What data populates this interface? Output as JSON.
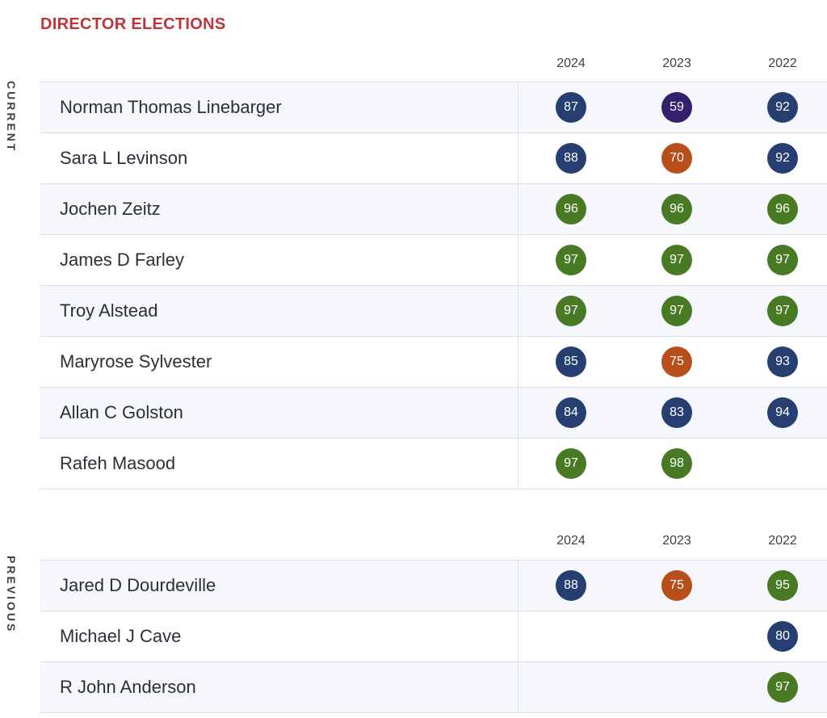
{
  "page": {
    "title": "DIRECTOR ELECTIONS",
    "title_color": "#c0333a"
  },
  "score_colors": {
    "blue": "#263f70",
    "purple": "#34206d",
    "orange": "#b84f1b",
    "green": "#487a23"
  },
  "sections": [
    {
      "label": "CURRENT",
      "years": [
        "2024",
        "2023",
        "2022"
      ],
      "rows": [
        {
          "name": "Norman Thomas Linebarger",
          "scores": [
            {
              "value": "87",
              "color": "blue"
            },
            {
              "value": "59",
              "color": "purple"
            },
            {
              "value": "92",
              "color": "blue"
            }
          ]
        },
        {
          "name": "Sara L Levinson",
          "scores": [
            {
              "value": "88",
              "color": "blue"
            },
            {
              "value": "70",
              "color": "orange"
            },
            {
              "value": "92",
              "color": "blue"
            }
          ]
        },
        {
          "name": "Jochen Zeitz",
          "scores": [
            {
              "value": "96",
              "color": "green"
            },
            {
              "value": "96",
              "color": "green"
            },
            {
              "value": "96",
              "color": "green"
            }
          ]
        },
        {
          "name": "James D Farley",
          "scores": [
            {
              "value": "97",
              "color": "green"
            },
            {
              "value": "97",
              "color": "green"
            },
            {
              "value": "97",
              "color": "green"
            }
          ]
        },
        {
          "name": "Troy Alstead",
          "scores": [
            {
              "value": "97",
              "color": "green"
            },
            {
              "value": "97",
              "color": "green"
            },
            {
              "value": "97",
              "color": "green"
            }
          ]
        },
        {
          "name": "Maryrose Sylvester",
          "scores": [
            {
              "value": "85",
              "color": "blue"
            },
            {
              "value": "75",
              "color": "orange"
            },
            {
              "value": "93",
              "color": "blue"
            }
          ]
        },
        {
          "name": "Allan C Golston",
          "scores": [
            {
              "value": "84",
              "color": "blue"
            },
            {
              "value": "83",
              "color": "blue"
            },
            {
              "value": "94",
              "color": "blue"
            }
          ]
        },
        {
          "name": "Rafeh Masood",
          "scores": [
            {
              "value": "97",
              "color": "green"
            },
            {
              "value": "98",
              "color": "green"
            },
            null
          ]
        }
      ]
    },
    {
      "label": "PREVIOUS",
      "years": [
        "2024",
        "2023",
        "2022"
      ],
      "rows": [
        {
          "name": "Jared D Dourdeville",
          "scores": [
            {
              "value": "88",
              "color": "blue"
            },
            {
              "value": "75",
              "color": "orange"
            },
            {
              "value": "95",
              "color": "green"
            }
          ]
        },
        {
          "name": "Michael J Cave",
          "scores": [
            null,
            null,
            {
              "value": "80",
              "color": "blue"
            }
          ]
        },
        {
          "name": "R John Anderson",
          "scores": [
            null,
            null,
            {
              "value": "97",
              "color": "green"
            }
          ]
        }
      ]
    }
  ]
}
